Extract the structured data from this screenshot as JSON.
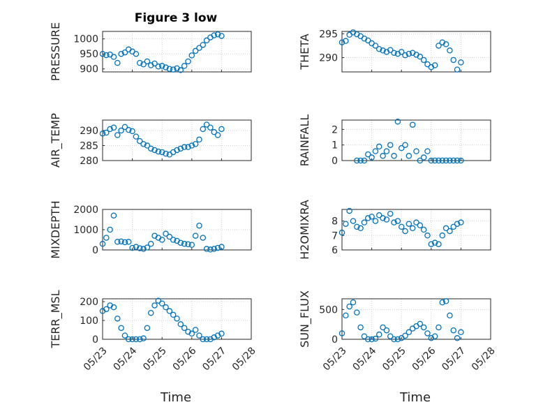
{
  "figure": {
    "title": "Figure 3 low",
    "xlabel": "Time",
    "xticks": [
      "05/23",
      "05/24",
      "05/25",
      "05/26",
      "05/27",
      "05/28"
    ],
    "marker_color": "#0072BD"
  },
  "chart_data": [
    {
      "type": "scatter",
      "ylabel": "PRESSURE",
      "ylim": [
        890,
        1025
      ],
      "yticks": [
        900,
        950,
        1000
      ],
      "grid": true,
      "x_domain": [
        "05/23",
        "05/28"
      ],
      "series": [
        {
          "x": [
            "2023-05-23T00:00",
            "2023-05-23T03:00",
            "2023-05-23T06:00",
            "2023-05-23T09:00",
            "2023-05-23T12:00",
            "2023-05-23T15:00",
            "2023-05-23T18:00",
            "2023-05-23T21:00",
            "2023-05-24T00:00",
            "2023-05-24T03:00",
            "2023-05-24T06:00",
            "2023-05-24T09:00",
            "2023-05-24T12:00",
            "2023-05-24T15:00",
            "2023-05-24T18:00",
            "2023-05-24T21:00",
            "2023-05-25T00:00",
            "2023-05-25T03:00",
            "2023-05-25T06:00",
            "2023-05-25T09:00",
            "2023-05-25T12:00",
            "2023-05-25T15:00",
            "2023-05-25T18:00",
            "2023-05-25T21:00",
            "2023-05-26T00:00",
            "2023-05-26T03:00",
            "2023-05-26T06:00",
            "2023-05-26T09:00",
            "2023-05-26T12:00",
            "2023-05-26T15:00",
            "2023-05-26T18:00",
            "2023-05-26T21:00",
            "2023-05-27T00:00"
          ],
          "y": [
            950,
            946,
            948,
            940,
            920,
            950,
            955,
            965,
            958,
            950,
            920,
            915,
            925,
            912,
            918,
            908,
            910,
            905,
            900,
            898,
            902,
            896,
            910,
            925,
            945,
            960,
            970,
            980,
            995,
            1005,
            1012,
            1015,
            1010
          ]
        }
      ]
    },
    {
      "type": "scatter",
      "ylabel": "THETA",
      "ylim": [
        287,
        295.5
      ],
      "yticks": [
        290,
        295
      ],
      "grid": true,
      "x_domain": [
        "05/23",
        "05/28"
      ],
      "series": [
        {
          "x": [
            "2023-05-23T00:00",
            "2023-05-23T03:00",
            "2023-05-23T06:00",
            "2023-05-23T09:00",
            "2023-05-23T12:00",
            "2023-05-23T15:00",
            "2023-05-23T18:00",
            "2023-05-23T21:00",
            "2023-05-24T00:00",
            "2023-05-24T03:00",
            "2023-05-24T06:00",
            "2023-05-24T09:00",
            "2023-05-24T12:00",
            "2023-05-24T15:00",
            "2023-05-24T18:00",
            "2023-05-24T21:00",
            "2023-05-25T00:00",
            "2023-05-25T03:00",
            "2023-05-25T06:00",
            "2023-05-25T09:00",
            "2023-05-25T12:00",
            "2023-05-25T15:00",
            "2023-05-25T18:00",
            "2023-05-25T21:00",
            "2023-05-26T00:00",
            "2023-05-26T03:00",
            "2023-05-26T06:00",
            "2023-05-26T09:00",
            "2023-05-26T12:00",
            "2023-05-26T15:00",
            "2023-05-26T18:00",
            "2023-05-26T21:00",
            "2023-05-27T00:00"
          ],
          "y": [
            293.2,
            293.5,
            294.8,
            295.3,
            294.9,
            294.5,
            294.0,
            293.6,
            293.0,
            292.5,
            291.8,
            291.5,
            291.2,
            291.6,
            291.0,
            290.8,
            291.2,
            290.5,
            290.8,
            291.0,
            290.6,
            290.2,
            289.5,
            288.6,
            288.0,
            288.4,
            292.5,
            293.2,
            292.8,
            291.5,
            289.5,
            287.5,
            289.0
          ]
        }
      ]
    },
    {
      "type": "scatter",
      "ylabel": "AIR_TEMP",
      "ylim": [
        280,
        293.5
      ],
      "yticks": [
        280,
        285,
        290
      ],
      "grid": true,
      "x_domain": [
        "05/23",
        "05/28"
      ],
      "series": [
        {
          "x": [
            "2023-05-23T00:00",
            "2023-05-23T03:00",
            "2023-05-23T06:00",
            "2023-05-23T09:00",
            "2023-05-23T12:00",
            "2023-05-23T15:00",
            "2023-05-23T18:00",
            "2023-05-23T21:00",
            "2023-05-24T00:00",
            "2023-05-24T03:00",
            "2023-05-24T06:00",
            "2023-05-24T09:00",
            "2023-05-24T12:00",
            "2023-05-24T15:00",
            "2023-05-24T18:00",
            "2023-05-24T21:00",
            "2023-05-25T00:00",
            "2023-05-25T03:00",
            "2023-05-25T06:00",
            "2023-05-25T09:00",
            "2023-05-25T12:00",
            "2023-05-25T15:00",
            "2023-05-25T18:00",
            "2023-05-25T21:00",
            "2023-05-26T00:00",
            "2023-05-26T03:00",
            "2023-05-26T06:00",
            "2023-05-26T09:00",
            "2023-05-26T12:00",
            "2023-05-26T15:00",
            "2023-05-26T18:00",
            "2023-05-26T21:00",
            "2023-05-27T00:00"
          ],
          "y": [
            289.0,
            289.3,
            290.5,
            291.0,
            288.5,
            290.0,
            291.2,
            290.2,
            289.8,
            288.0,
            286.5,
            285.5,
            285.0,
            284.0,
            283.5,
            283.0,
            282.8,
            282.3,
            282.0,
            282.8,
            283.5,
            284.0,
            284.5,
            284.5,
            285.0,
            285.5,
            287.0,
            290.5,
            292.0,
            291.0,
            289.5,
            288.5,
            290.5
          ]
        }
      ]
    },
    {
      "type": "scatter",
      "ylabel": "RAINFALL",
      "ylim": [
        0,
        2.6
      ],
      "yticks": [
        0,
        1,
        2
      ],
      "grid": true,
      "x_domain": [
        "05/23",
        "05/28"
      ],
      "series": [
        {
          "x": [
            "2023-05-23T12:00",
            "2023-05-23T15:00",
            "2023-05-23T18:00",
            "2023-05-23T21:00",
            "2023-05-24T00:00",
            "2023-05-24T03:00",
            "2023-05-24T06:00",
            "2023-05-24T09:00",
            "2023-05-24T12:00",
            "2023-05-24T15:00",
            "2023-05-24T18:00",
            "2023-05-24T21:00",
            "2023-05-25T00:00",
            "2023-05-25T03:00",
            "2023-05-25T06:00",
            "2023-05-25T09:00",
            "2023-05-25T12:00",
            "2023-05-25T15:00",
            "2023-05-25T18:00",
            "2023-05-25T21:00",
            "2023-05-26T00:00",
            "2023-05-26T03:00",
            "2023-05-26T06:00",
            "2023-05-26T09:00",
            "2023-05-26T12:00",
            "2023-05-26T15:00",
            "2023-05-26T18:00",
            "2023-05-26T21:00",
            "2023-05-27T00:00"
          ],
          "y": [
            0,
            0,
            0,
            0.4,
            0.2,
            0.6,
            0.9,
            0.3,
            0.6,
            1.0,
            0.3,
            2.5,
            0.8,
            1.0,
            0.3,
            2.3,
            0.6,
            0,
            0.2,
            0.6,
            0,
            0,
            0,
            0,
            0,
            0,
            0,
            0,
            0
          ]
        }
      ]
    },
    {
      "type": "scatter",
      "ylabel": "MIXDEPTH",
      "ylim": [
        0,
        2000
      ],
      "yticks": [
        0,
        1000,
        2000
      ],
      "grid": true,
      "x_domain": [
        "05/23",
        "05/28"
      ],
      "series": [
        {
          "x": [
            "2023-05-23T00:00",
            "2023-05-23T03:00",
            "2023-05-23T06:00",
            "2023-05-23T09:00",
            "2023-05-23T12:00",
            "2023-05-23T15:00",
            "2023-05-23T18:00",
            "2023-05-23T21:00",
            "2023-05-24T00:00",
            "2023-05-24T03:00",
            "2023-05-24T06:00",
            "2023-05-24T09:00",
            "2023-05-24T12:00",
            "2023-05-24T15:00",
            "2023-05-24T18:00",
            "2023-05-24T21:00",
            "2023-05-25T00:00",
            "2023-05-25T03:00",
            "2023-05-25T06:00",
            "2023-05-25T09:00",
            "2023-05-25T12:00",
            "2023-05-25T15:00",
            "2023-05-25T18:00",
            "2023-05-25T21:00",
            "2023-05-26T00:00",
            "2023-05-26T03:00",
            "2023-05-26T06:00",
            "2023-05-26T09:00",
            "2023-05-26T12:00",
            "2023-05-26T15:00",
            "2023-05-26T18:00",
            "2023-05-26T21:00",
            "2023-05-27T00:00"
          ],
          "y": [
            300,
            600,
            1000,
            1700,
            400,
            420,
            380,
            400,
            100,
            150,
            80,
            50,
            120,
            300,
            700,
            600,
            500,
            800,
            650,
            500,
            450,
            350,
            300,
            280,
            250,
            700,
            1200,
            600,
            50,
            20,
            50,
            100,
            150
          ]
        }
      ]
    },
    {
      "type": "scatter",
      "ylabel": "H2OMIXRA",
      "ylim": [
        6,
        8.8
      ],
      "yticks": [
        6,
        7,
        8
      ],
      "grid": true,
      "x_domain": [
        "05/23",
        "05/28"
      ],
      "series": [
        {
          "x": [
            "2023-05-23T00:00",
            "2023-05-23T03:00",
            "2023-05-23T06:00",
            "2023-05-23T09:00",
            "2023-05-23T12:00",
            "2023-05-23T15:00",
            "2023-05-23T18:00",
            "2023-05-23T21:00",
            "2023-05-24T00:00",
            "2023-05-24T03:00",
            "2023-05-24T06:00",
            "2023-05-24T09:00",
            "2023-05-24T12:00",
            "2023-05-24T15:00",
            "2023-05-24T18:00",
            "2023-05-24T21:00",
            "2023-05-25T00:00",
            "2023-05-25T03:00",
            "2023-05-25T06:00",
            "2023-05-25T09:00",
            "2023-05-25T12:00",
            "2023-05-25T15:00",
            "2023-05-25T18:00",
            "2023-05-25T21:00",
            "2023-05-26T00:00",
            "2023-05-26T03:00",
            "2023-05-26T06:00",
            "2023-05-26T09:00",
            "2023-05-26T12:00",
            "2023-05-26T15:00",
            "2023-05-26T18:00",
            "2023-05-26T21:00",
            "2023-05-27T00:00"
          ],
          "y": [
            7.2,
            7.8,
            8.7,
            8.0,
            7.6,
            7.5,
            7.9,
            8.2,
            8.3,
            8.0,
            8.4,
            8.2,
            8.1,
            8.5,
            7.9,
            8.0,
            7.6,
            7.3,
            7.8,
            7.5,
            7.9,
            7.7,
            7.4,
            7.0,
            6.4,
            6.5,
            6.4,
            7.0,
            7.5,
            7.3,
            7.6,
            7.8,
            7.9
          ]
        }
      ]
    },
    {
      "type": "scatter",
      "ylabel": "TERR_MSL",
      "ylim": [
        0,
        215
      ],
      "yticks": [
        0,
        100,
        200
      ],
      "grid": true,
      "x_domain": [
        "05/23",
        "05/28"
      ],
      "series": [
        {
          "x": [
            "2023-05-23T00:00",
            "2023-05-23T03:00",
            "2023-05-23T06:00",
            "2023-05-23T09:00",
            "2023-05-23T12:00",
            "2023-05-23T15:00",
            "2023-05-23T18:00",
            "2023-05-23T21:00",
            "2023-05-24T00:00",
            "2023-05-24T03:00",
            "2023-05-24T06:00",
            "2023-05-24T09:00",
            "2023-05-24T12:00",
            "2023-05-24T15:00",
            "2023-05-24T18:00",
            "2023-05-24T21:00",
            "2023-05-25T00:00",
            "2023-05-25T03:00",
            "2023-05-25T06:00",
            "2023-05-25T09:00",
            "2023-05-25T12:00",
            "2023-05-25T15:00",
            "2023-05-25T18:00",
            "2023-05-25T21:00",
            "2023-05-26T00:00",
            "2023-05-26T03:00",
            "2023-05-26T06:00",
            "2023-05-26T09:00",
            "2023-05-26T12:00",
            "2023-05-26T15:00",
            "2023-05-26T18:00",
            "2023-05-26T21:00",
            "2023-05-27T00:00"
          ],
          "y": [
            150,
            160,
            180,
            170,
            110,
            60,
            20,
            0,
            0,
            0,
            0,
            5,
            60,
            140,
            180,
            205,
            190,
            170,
            150,
            130,
            110,
            80,
            60,
            40,
            30,
            50,
            20,
            0,
            0,
            0,
            10,
            20,
            30
          ]
        }
      ]
    },
    {
      "type": "scatter",
      "ylabel": "SUN_FLUX",
      "ylim": [
        0,
        680
      ],
      "yticks": [
        0,
        500
      ],
      "grid": true,
      "x_domain": [
        "05/23",
        "05/28"
      ],
      "series": [
        {
          "x": [
            "2023-05-23T00:00",
            "2023-05-23T03:00",
            "2023-05-23T06:00",
            "2023-05-23T09:00",
            "2023-05-23T12:00",
            "2023-05-23T15:00",
            "2023-05-23T18:00",
            "2023-05-23T21:00",
            "2023-05-24T00:00",
            "2023-05-24T03:00",
            "2023-05-24T06:00",
            "2023-05-24T09:00",
            "2023-05-24T12:00",
            "2023-05-24T15:00",
            "2023-05-24T18:00",
            "2023-05-24T21:00",
            "2023-05-25T00:00",
            "2023-05-25T03:00",
            "2023-05-25T06:00",
            "2023-05-25T09:00",
            "2023-05-25T12:00",
            "2023-05-25T15:00",
            "2023-05-25T18:00",
            "2023-05-25T21:00",
            "2023-05-26T00:00",
            "2023-05-26T03:00",
            "2023-05-26T06:00",
            "2023-05-26T09:00",
            "2023-05-26T12:00",
            "2023-05-26T15:00",
            "2023-05-26T18:00",
            "2023-05-26T21:00",
            "2023-05-27T00:00"
          ],
          "y": [
            100,
            400,
            550,
            620,
            450,
            200,
            50,
            0,
            0,
            10,
            80,
            200,
            150,
            50,
            0,
            0,
            20,
            60,
            120,
            180,
            220,
            260,
            200,
            100,
            20,
            50,
            200,
            620,
            640,
            400,
            150,
            20,
            120
          ]
        }
      ]
    }
  ]
}
